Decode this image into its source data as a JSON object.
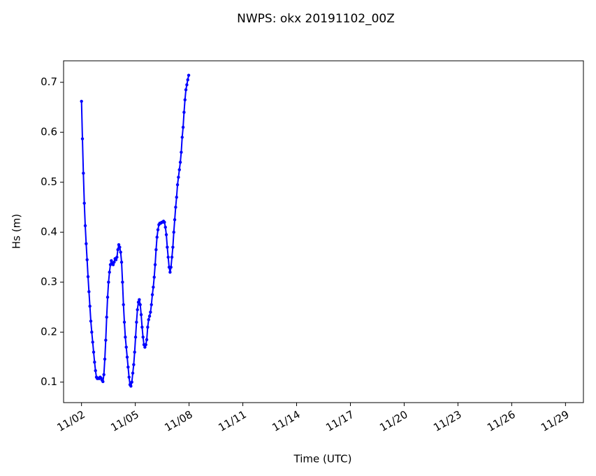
{
  "chart_data": {
    "type": "line",
    "title": "NWPS: okx 20191102_00Z",
    "x_label": "Time (UTC)",
    "y_label": "Hs (m)",
    "color": "#0000ff",
    "markers": true,
    "grid": false,
    "x": [
      2.0,
      2.052,
      2.104,
      2.156,
      2.208,
      2.26,
      2.312,
      2.364,
      2.416,
      2.468,
      2.52,
      2.572,
      2.624,
      2.676,
      2.728,
      2.78,
      2.832,
      2.884,
      2.936,
      2.988,
      3.04,
      3.092,
      3.144,
      3.196,
      3.248,
      3.3,
      3.352,
      3.404,
      3.456,
      3.508,
      3.56,
      3.612,
      3.664,
      3.716,
      3.768,
      3.82,
      3.872,
      3.924,
      3.976,
      4.028,
      4.08,
      4.132,
      4.184,
      4.236,
      4.288,
      4.34,
      4.392,
      4.444,
      4.496,
      4.548,
      4.6,
      4.652,
      4.704,
      4.756,
      4.808,
      4.86,
      4.912,
      4.964,
      5.016,
      5.068,
      5.12,
      5.172,
      5.224,
      5.276,
      5.328,
      5.38,
      5.432,
      5.484,
      5.536,
      5.588,
      5.64,
      5.692,
      5.744,
      5.796,
      5.848,
      5.9,
      5.952,
      6.004,
      6.056,
      6.108,
      6.16,
      6.212,
      6.264,
      6.316,
      6.368,
      6.42,
      6.472,
      6.524,
      6.576,
      6.628,
      6.68,
      6.732,
      6.784,
      6.836,
      6.888,
      6.94,
      6.992,
      7.044,
      7.096,
      7.148,
      7.2,
      7.252,
      7.304,
      7.356,
      7.408,
      7.46,
      7.512,
      7.564,
      7.616,
      7.668,
      7.72,
      7.772,
      7.824,
      7.876,
      7.928,
      7.98
    ],
    "values": [
      0.662,
      0.587,
      0.518,
      0.458,
      0.413,
      0.377,
      0.345,
      0.311,
      0.281,
      0.252,
      0.222,
      0.2,
      0.18,
      0.16,
      0.14,
      0.123,
      0.11,
      0.107,
      0.108,
      0.107,
      0.11,
      0.108,
      0.104,
      0.101,
      0.115,
      0.146,
      0.184,
      0.23,
      0.27,
      0.3,
      0.32,
      0.335,
      0.343,
      0.338,
      0.335,
      0.34,
      0.347,
      0.345,
      0.35,
      0.365,
      0.375,
      0.37,
      0.36,
      0.34,
      0.3,
      0.255,
      0.22,
      0.19,
      0.17,
      0.15,
      0.13,
      0.11,
      0.095,
      0.092,
      0.1,
      0.118,
      0.135,
      0.16,
      0.19,
      0.22,
      0.245,
      0.26,
      0.265,
      0.255,
      0.235,
      0.21,
      0.19,
      0.175,
      0.17,
      0.175,
      0.185,
      0.21,
      0.225,
      0.232,
      0.24,
      0.255,
      0.275,
      0.29,
      0.31,
      0.335,
      0.365,
      0.39,
      0.405,
      0.415,
      0.418,
      0.418,
      0.42,
      0.42,
      0.422,
      0.42,
      0.41,
      0.395,
      0.37,
      0.35,
      0.33,
      0.32,
      0.33,
      0.35,
      0.37,
      0.4,
      0.425,
      0.45,
      0.47,
      0.495,
      0.51,
      0.525,
      0.54,
      0.56,
      0.59,
      0.61,
      0.64,
      0.665,
      0.685,
      0.695,
      0.705,
      0.714
    ],
    "xlim": [
      1.0,
      30.0
    ],
    "xticks": [
      {
        "value": 2,
        "label": "11/02"
      },
      {
        "value": 5,
        "label": "11/05"
      },
      {
        "value": 8,
        "label": "11/08"
      },
      {
        "value": 11,
        "label": "11/11"
      },
      {
        "value": 14,
        "label": "11/14"
      },
      {
        "value": 17,
        "label": "11/17"
      },
      {
        "value": 20,
        "label": "11/20"
      },
      {
        "value": 23,
        "label": "11/23"
      },
      {
        "value": 26,
        "label": "11/26"
      },
      {
        "value": 29,
        "label": "11/29"
      }
    ],
    "ylim": [
      0.059,
      0.743
    ],
    "yticks": [
      0.1,
      0.2,
      0.3,
      0.4,
      0.5,
      0.6,
      0.7
    ]
  }
}
